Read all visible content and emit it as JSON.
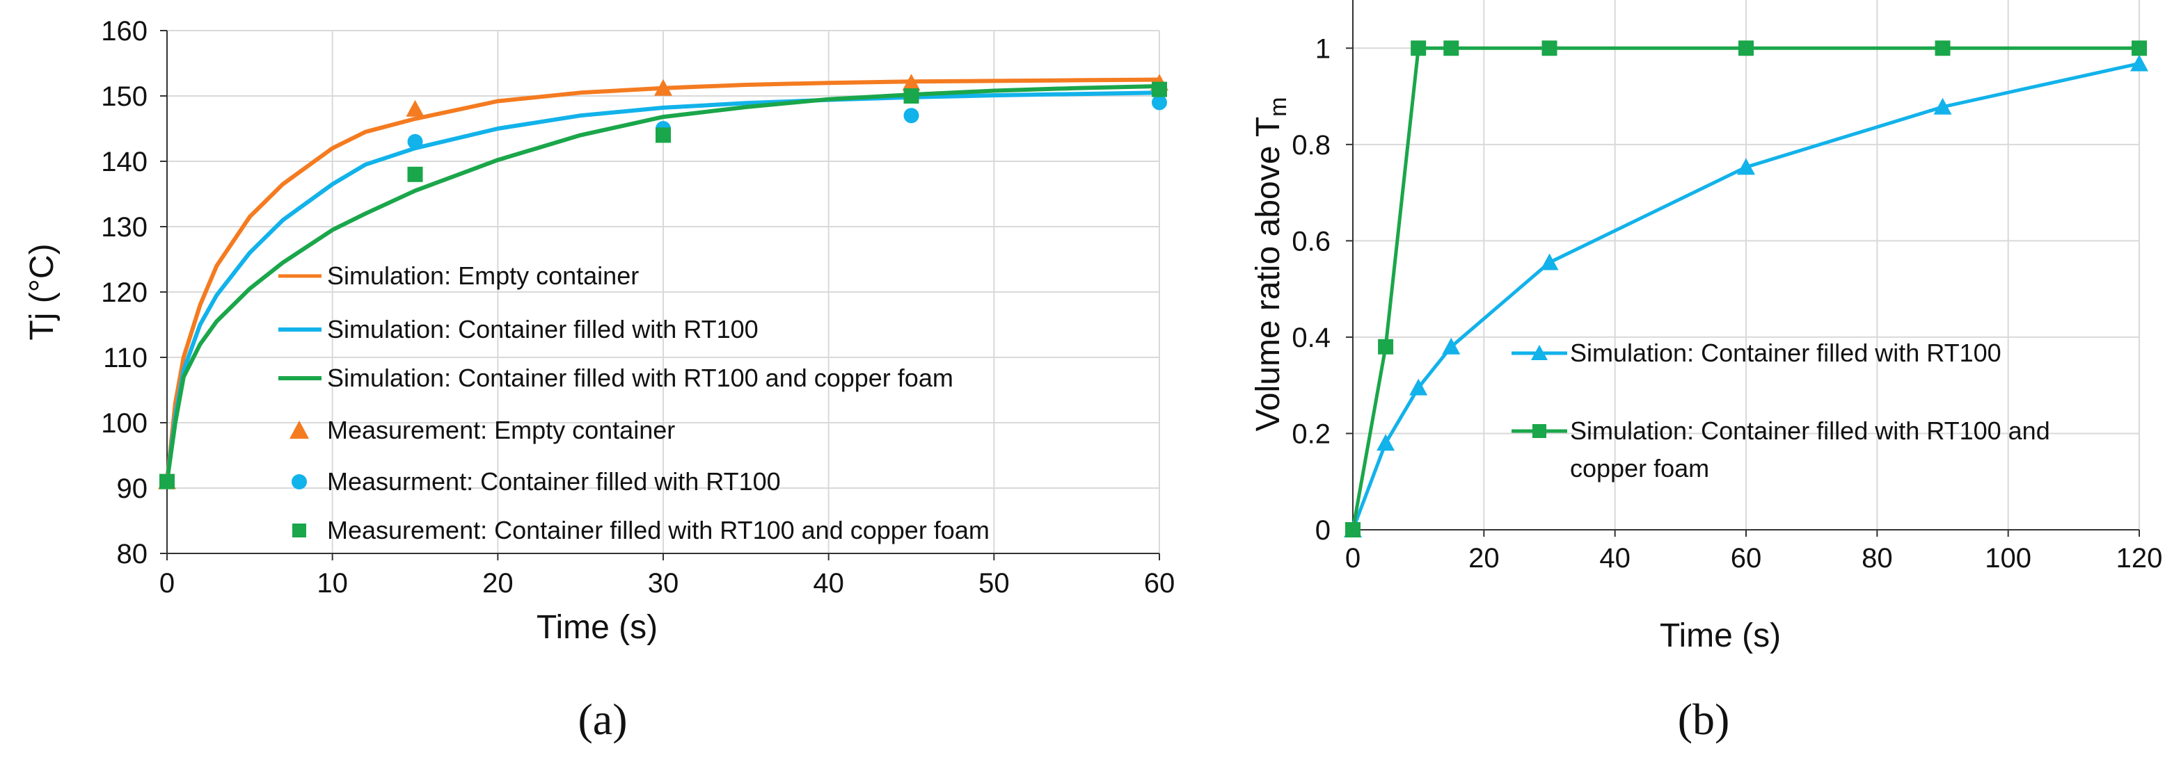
{
  "colors": {
    "orange": "#F47B20",
    "blue": "#12B2EA",
    "green": "#1AA64A",
    "grid": "#D9D9D9",
    "axis": "#333333"
  },
  "chart_data": [
    {
      "id": "a",
      "type": "line",
      "caption": "(a)",
      "xlabel": "Time (s)",
      "ylabel": "Tj (°C)",
      "xlim": [
        0,
        60
      ],
      "ylim": [
        80,
        160
      ],
      "xticks": [
        0,
        10,
        20,
        30,
        40,
        50,
        60
      ],
      "yticks": [
        80,
        90,
        100,
        110,
        120,
        130,
        140,
        150,
        160
      ],
      "grid": true,
      "legend_position": "center",
      "series": [
        {
          "name": "Simulation: Empty container",
          "kind": "line",
          "color": "#F47B20",
          "x": [
            0,
            0.5,
            1,
            2,
            3,
            5,
            7,
            10,
            12,
            15,
            20,
            25,
            30,
            35,
            40,
            45,
            50,
            55,
            60
          ],
          "y": [
            91,
            103,
            110,
            118,
            124,
            131.5,
            136.5,
            142,
            144.5,
            146.5,
            149.2,
            150.5,
            151.2,
            151.7,
            152,
            152.2,
            152.3,
            152.4,
            152.5
          ]
        },
        {
          "name": "Simulation: Container filled with RT100",
          "kind": "line",
          "color": "#12B2EA",
          "x": [
            0,
            0.5,
            1,
            2,
            3,
            5,
            7,
            10,
            12,
            15,
            20,
            25,
            30,
            35,
            40,
            45,
            50,
            55,
            60
          ],
          "y": [
            91,
            101,
            108,
            115,
            119.5,
            126,
            131,
            136.5,
            139.5,
            142,
            145,
            147,
            148.2,
            148.9,
            149.4,
            149.8,
            150.1,
            150.3,
            150.5
          ]
        },
        {
          "name": "Simulation: Container filled with RT100 and copper foam",
          "kind": "line",
          "color": "#1AA64A",
          "x": [
            0,
            0.5,
            1,
            2,
            3,
            5,
            7,
            10,
            12,
            15,
            20,
            25,
            30,
            35,
            40,
            45,
            50,
            55,
            60
          ],
          "y": [
            91,
            100,
            107,
            112,
            115.5,
            120.5,
            124.5,
            129.5,
            132,
            135.5,
            140.2,
            144,
            146.8,
            148.3,
            149.5,
            150.2,
            150.8,
            151.2,
            151.5
          ]
        },
        {
          "name": "Measurement: Empty container",
          "kind": "triangle",
          "color": "#F47B20",
          "x": [
            0,
            15,
            30,
            45,
            60
          ],
          "y": [
            91,
            148,
            151.2,
            152,
            152
          ]
        },
        {
          "name": "Measurment: Container filled with RT100",
          "kind": "circle",
          "color": "#12B2EA",
          "x": [
            0,
            15,
            30,
            45,
            60
          ],
          "y": [
            91,
            143,
            145,
            147,
            149
          ]
        },
        {
          "name": "Measurement: Container filled with RT100 and copper foam",
          "kind": "square",
          "color": "#1AA64A",
          "x": [
            0,
            15,
            30,
            45,
            60
          ],
          "y": [
            91,
            138,
            144,
            150,
            151
          ]
        }
      ]
    },
    {
      "id": "b",
      "type": "line",
      "caption": "(b)",
      "xlabel": "Time (s)",
      "ylabel_main": "Volume ratio above T",
      "ylabel_sub": "m",
      "xlim": [
        0,
        120
      ],
      "ylim": [
        0,
        1.1
      ],
      "xticks": [
        0,
        20,
        40,
        60,
        80,
        100,
        120
      ],
      "xtick_labels": [
        "0",
        "20",
        "40",
        "60",
        "80",
        "100",
        "120"
      ],
      "yticks": [
        0,
        0.2,
        0.4,
        0.6,
        0.8,
        1
      ],
      "ytick_labels": [
        "0",
        "0.2",
        "0.4",
        "0.6",
        "0.8",
        "1"
      ],
      "grid": true,
      "legend_position": "center-right",
      "series": [
        {
          "name": "Simulation: Container filled with RT100",
          "marker": "triangle",
          "color": "#12B2EA",
          "x": [
            0,
            5,
            10,
            15,
            30,
            60,
            90,
            120
          ],
          "y": [
            0,
            0.18,
            0.295,
            0.38,
            0.555,
            0.753,
            0.878,
            0.968
          ]
        },
        {
          "name_line1": "Simulation: Container filled with RT100 and",
          "name_line2": "copper foam",
          "marker": "square",
          "color": "#1AA64A",
          "x": [
            0,
            5,
            10,
            15,
            30,
            60,
            90,
            120
          ],
          "y": [
            0,
            0.38,
            1,
            1,
            1,
            1,
            1,
            1
          ]
        }
      ]
    }
  ]
}
